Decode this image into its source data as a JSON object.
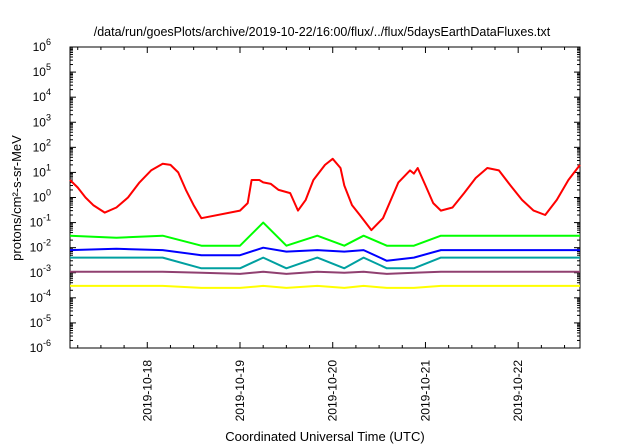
{
  "chart_data": {
    "type": "line",
    "title": "/data/run/goesPlots/archive/2019-10-22/16:00/flux/../flux/5daysEarthDataFluxes.txt",
    "xlabel": "Coordinated Universal Time (UTC)",
    "ylabel": "protons/cm²-s-sr-MeV",
    "y_scale": "log",
    "ylim": [
      1e-06,
      1000000.0
    ],
    "y_tick_labels": [
      {
        "base": "10",
        "exp": "-6"
      },
      {
        "base": "10",
        "exp": "-5"
      },
      {
        "base": "10",
        "exp": "-4"
      },
      {
        "base": "10",
        "exp": "-3"
      },
      {
        "base": "10",
        "exp": "-2"
      },
      {
        "base": "10",
        "exp": "-1"
      },
      {
        "base": "10",
        "exp": "0"
      },
      {
        "base": "10",
        "exp": "1"
      },
      {
        "base": "10",
        "exp": "2"
      },
      {
        "base": "10",
        "exp": "3"
      },
      {
        "base": "10",
        "exp": "4"
      },
      {
        "base": "10",
        "exp": "5"
      },
      {
        "base": "10",
        "exp": "6"
      }
    ],
    "xlim": [
      "2019-10-17 04:00",
      "2019-10-22 16:00"
    ],
    "x_ticks": [
      "2019-10-18",
      "2019-10-19",
      "2019-10-20",
      "2019-10-21",
      "2019-10-22"
    ],
    "grid": false,
    "legend": "none",
    "series": [
      {
        "color": "#ff0000",
        "x": [
          "2019-10-17 04:00",
          "2019-10-17 06:00",
          "2019-10-17 08:00",
          "2019-10-17 10:00",
          "2019-10-17 13:00",
          "2019-10-17 16:00",
          "2019-10-17 19:00",
          "2019-10-17 22:00",
          "2019-10-18 01:00",
          "2019-10-18 04:00",
          "2019-10-18 06:00",
          "2019-10-18 08:00",
          "2019-10-18 10:00",
          "2019-10-18 12:00",
          "2019-10-18 14:00",
          "2019-10-19 00:00",
          "2019-10-19 02:00",
          "2019-10-19 03:00",
          "2019-10-19 05:00",
          "2019-10-19 06:00",
          "2019-10-19 08:00",
          "2019-10-19 10:00",
          "2019-10-19 13:00",
          "2019-10-19 15:00",
          "2019-10-19 17:00",
          "2019-10-19 19:00",
          "2019-10-19 22:00",
          "2019-10-20 00:00",
          "2019-10-20 02:00",
          "2019-10-20 03:00",
          "2019-10-20 05:00",
          "2019-10-20 07:00",
          "2019-10-20 10:00",
          "2019-10-20 13:00",
          "2019-10-20 17:00",
          "2019-10-20 20:00",
          "2019-10-20 21:00",
          "2019-10-20 22:00",
          "2019-10-21 00:00",
          "2019-10-21 02:00",
          "2019-10-21 04:00",
          "2019-10-21 07:00",
          "2019-10-21 10:00",
          "2019-10-21 13:00",
          "2019-10-21 16:00",
          "2019-10-21 19:00",
          "2019-10-21 22:00",
          "2019-10-22 01:00",
          "2019-10-22 04:00",
          "2019-10-22 07:00",
          "2019-10-22 10:00",
          "2019-10-22 13:00",
          "2019-10-22 16:00"
        ],
        "y": [
          5,
          2.5,
          1,
          0.5,
          0.25,
          0.4,
          1,
          4,
          12,
          22,
          20,
          10,
          2,
          0.5,
          0.15,
          0.3,
          0.6,
          5,
          5,
          4,
          3.5,
          2,
          1.5,
          0.3,
          0.8,
          5,
          20,
          35,
          15,
          3,
          0.5,
          0.2,
          0.05,
          0.15,
          4,
          12,
          9,
          15,
          3,
          0.6,
          0.3,
          0.4,
          1.5,
          6,
          15,
          12,
          3,
          0.8,
          0.3,
          0.2,
          0.8,
          5,
          20
        ]
      },
      {
        "color": "#00ff00",
        "x": [
          "2019-10-17 04:00",
          "2019-10-17 16:00",
          "2019-10-18 04:00",
          "2019-10-18 14:00",
          "2019-10-19 00:00",
          "2019-10-19 06:00",
          "2019-10-19 12:00",
          "2019-10-19 20:00",
          "2019-10-20 03:00",
          "2019-10-20 08:00",
          "2019-10-20 14:00",
          "2019-10-20 21:00",
          "2019-10-21 04:00",
          "2019-10-21 14:00",
          "2019-10-22 00:00",
          "2019-10-22 10:00",
          "2019-10-22 16:00"
        ],
        "y": [
          0.03,
          0.025,
          0.03,
          0.012,
          0.012,
          0.1,
          0.012,
          0.03,
          0.012,
          0.03,
          0.012,
          0.012,
          0.03,
          0.03,
          0.03,
          0.03,
          0.03
        ]
      },
      {
        "color": "#0000ff",
        "x": [
          "2019-10-17 04:00",
          "2019-10-17 16:00",
          "2019-10-18 04:00",
          "2019-10-18 14:00",
          "2019-10-19 00:00",
          "2019-10-19 06:00",
          "2019-10-19 12:00",
          "2019-10-19 20:00",
          "2019-10-20 03:00",
          "2019-10-20 08:00",
          "2019-10-20 14:00",
          "2019-10-20 21:00",
          "2019-10-21 04:00",
          "2019-10-21 14:00",
          "2019-10-22 00:00",
          "2019-10-22 10:00",
          "2019-10-22 16:00"
        ],
        "y": [
          0.008,
          0.009,
          0.008,
          0.005,
          0.005,
          0.01,
          0.007,
          0.008,
          0.007,
          0.008,
          0.003,
          0.004,
          0.008,
          0.008,
          0.008,
          0.008,
          0.008
        ]
      },
      {
        "color": "#00a0a0",
        "x": [
          "2019-10-17 04:00",
          "2019-10-17 16:00",
          "2019-10-18 04:00",
          "2019-10-18 14:00",
          "2019-10-19 00:00",
          "2019-10-19 06:00",
          "2019-10-19 12:00",
          "2019-10-19 20:00",
          "2019-10-20 03:00",
          "2019-10-20 08:00",
          "2019-10-20 14:00",
          "2019-10-20 21:00",
          "2019-10-21 04:00",
          "2019-10-21 14:00",
          "2019-10-22 00:00",
          "2019-10-22 10:00",
          "2019-10-22 16:00"
        ],
        "y": [
          0.004,
          0.004,
          0.004,
          0.0015,
          0.0015,
          0.004,
          0.0015,
          0.004,
          0.0015,
          0.004,
          0.0015,
          0.0015,
          0.004,
          0.004,
          0.004,
          0.004,
          0.004
        ]
      },
      {
        "color": "#904070",
        "x": [
          "2019-10-17 04:00",
          "2019-10-17 16:00",
          "2019-10-18 04:00",
          "2019-10-18 14:00",
          "2019-10-19 00:00",
          "2019-10-19 06:00",
          "2019-10-19 12:00",
          "2019-10-19 20:00",
          "2019-10-20 03:00",
          "2019-10-20 08:00",
          "2019-10-20 14:00",
          "2019-10-20 21:00",
          "2019-10-21 04:00",
          "2019-10-21 14:00",
          "2019-10-22 00:00",
          "2019-10-22 10:00",
          "2019-10-22 16:00"
        ],
        "y": [
          0.0011,
          0.0011,
          0.0011,
          0.001,
          0.0009,
          0.0011,
          0.0009,
          0.0011,
          0.001,
          0.0011,
          0.0009,
          0.001,
          0.0011,
          0.0011,
          0.0011,
          0.0011,
          0.0011
        ]
      },
      {
        "color": "#ffff00",
        "x": [
          "2019-10-17 04:00",
          "2019-10-17 16:00",
          "2019-10-18 04:00",
          "2019-10-18 14:00",
          "2019-10-19 00:00",
          "2019-10-19 06:00",
          "2019-10-19 12:00",
          "2019-10-19 20:00",
          "2019-10-20 03:00",
          "2019-10-20 08:00",
          "2019-10-20 14:00",
          "2019-10-20 21:00",
          "2019-10-21 04:00",
          "2019-10-21 14:00",
          "2019-10-22 00:00",
          "2019-10-22 10:00",
          "2019-10-22 16:00"
        ],
        "y": [
          0.0003,
          0.0003,
          0.0003,
          0.00025,
          0.00025,
          0.0003,
          0.00025,
          0.0003,
          0.00025,
          0.0003,
          0.00025,
          0.00025,
          0.0003,
          0.0003,
          0.0003,
          0.0003,
          0.0003
        ]
      }
    ]
  }
}
